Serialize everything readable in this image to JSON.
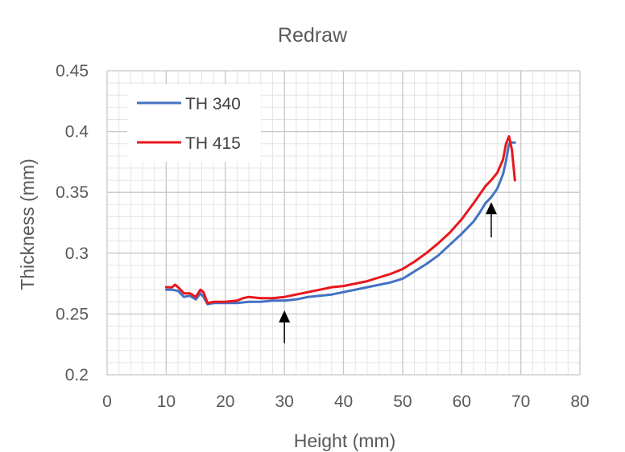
{
  "chart_data": {
    "type": "line",
    "title": "Redraw",
    "xlabel": "Height (mm)",
    "ylabel": "Thickness (mm)",
    "xlim": [
      0,
      80
    ],
    "ylim": [
      0.2,
      0.45
    ],
    "x_ticks": [
      "0",
      "10",
      "20",
      "30",
      "40",
      "50",
      "60",
      "70",
      "80"
    ],
    "y_ticks": [
      "0.2",
      "0.25",
      "0.3",
      "0.35",
      "0.4",
      "0.45"
    ],
    "grid": "major and minor",
    "legend_position": "top-left",
    "series": [
      {
        "name": "TH 340",
        "color": "#4472C4",
        "points": [
          [
            10,
            0.27
          ],
          [
            11,
            0.27
          ],
          [
            12,
            0.269
          ],
          [
            13,
            0.264
          ],
          [
            14,
            0.265
          ],
          [
            15,
            0.262
          ],
          [
            15.8,
            0.267
          ],
          [
            16.3,
            0.264
          ],
          [
            17,
            0.258
          ],
          [
            18,
            0.259
          ],
          [
            19,
            0.259
          ],
          [
            20,
            0.259
          ],
          [
            22,
            0.259
          ],
          [
            24,
            0.26
          ],
          [
            26,
            0.26
          ],
          [
            28,
            0.261
          ],
          [
            30,
            0.261
          ],
          [
            32,
            0.262
          ],
          [
            34,
            0.264
          ],
          [
            36,
            0.265
          ],
          [
            38,
            0.266
          ],
          [
            40,
            0.268
          ],
          [
            42,
            0.27
          ],
          [
            44,
            0.272
          ],
          [
            46,
            0.274
          ],
          [
            48,
            0.276
          ],
          [
            50,
            0.279
          ],
          [
            52,
            0.285
          ],
          [
            54,
            0.291
          ],
          [
            56,
            0.298
          ],
          [
            58,
            0.307
          ],
          [
            60,
            0.316
          ],
          [
            62,
            0.326
          ],
          [
            63,
            0.333
          ],
          [
            64,
            0.341
          ],
          [
            65,
            0.346
          ],
          [
            66,
            0.353
          ],
          [
            67,
            0.365
          ],
          [
            67.5,
            0.376
          ],
          [
            68,
            0.39
          ],
          [
            68.5,
            0.391
          ],
          [
            69,
            0.391
          ]
        ]
      },
      {
        "name": "TH 415",
        "color": "#E8171C",
        "points": [
          [
            10,
            0.272
          ],
          [
            11,
            0.272
          ],
          [
            11.5,
            0.274
          ],
          [
            12,
            0.272
          ],
          [
            13,
            0.267
          ],
          [
            14,
            0.267
          ],
          [
            15,
            0.264
          ],
          [
            15.8,
            0.27
          ],
          [
            16.3,
            0.268
          ],
          [
            17,
            0.259
          ],
          [
            18,
            0.26
          ],
          [
            19,
            0.26
          ],
          [
            20,
            0.26
          ],
          [
            22,
            0.261
          ],
          [
            23,
            0.263
          ],
          [
            24,
            0.264
          ],
          [
            26,
            0.263
          ],
          [
            28,
            0.263
          ],
          [
            30,
            0.264
          ],
          [
            32,
            0.266
          ],
          [
            34,
            0.268
          ],
          [
            36,
            0.27
          ],
          [
            38,
            0.272
          ],
          [
            40,
            0.273
          ],
          [
            42,
            0.275
          ],
          [
            44,
            0.277
          ],
          [
            46,
            0.28
          ],
          [
            48,
            0.283
          ],
          [
            50,
            0.287
          ],
          [
            52,
            0.293
          ],
          [
            54,
            0.3
          ],
          [
            56,
            0.308
          ],
          [
            58,
            0.317
          ],
          [
            60,
            0.328
          ],
          [
            62,
            0.341
          ],
          [
            63,
            0.348
          ],
          [
            64,
            0.355
          ],
          [
            65,
            0.36
          ],
          [
            66,
            0.366
          ],
          [
            67,
            0.377
          ],
          [
            67.5,
            0.39
          ],
          [
            68,
            0.396
          ],
          [
            68.5,
            0.385
          ],
          [
            69,
            0.36
          ]
        ]
      }
    ],
    "annotations": [
      {
        "type": "arrow",
        "x": 30,
        "y_tail": 0.226,
        "y_head": 0.253
      },
      {
        "type": "arrow",
        "x": 65,
        "y_tail": 0.313,
        "y_head": 0.342
      }
    ]
  }
}
